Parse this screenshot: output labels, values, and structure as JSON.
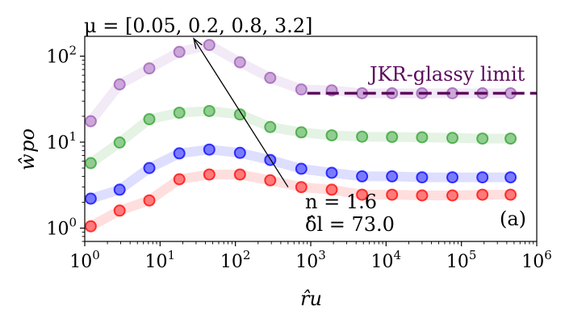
{
  "chart_data": {
    "type": "scatter",
    "x_scale": "log",
    "y_scale": "log",
    "xlim": [
      1,
      1000000
    ],
    "ylim": [
      0.7,
      170
    ],
    "xticks": [
      1,
      10,
      100,
      1000,
      10000,
      100000,
      1000000
    ],
    "yticks": [
      1,
      10,
      100
    ],
    "tick_base": "10",
    "xtick_exponents": [
      "0",
      "1",
      "2",
      "3",
      "4",
      "5",
      "6"
    ],
    "ytick_exponents": [
      "0",
      "1",
      "2"
    ],
    "xlabel": "r̂u",
    "ylabel": "ŵpo",
    "x": [
      1.2,
      2.9,
      7.2,
      18,
      45,
      115,
      290,
      750,
      1900,
      4800,
      12000,
      30000,
      76000,
      190000,
      450000
    ],
    "series": [
      {
        "color": "#9b59b6",
        "values": [
          17.5,
          47,
          72,
          112,
          135,
          85,
          56,
          41,
          40,
          37,
          37,
          37,
          37,
          37,
          37
        ]
      },
      {
        "color": "#2ca02c",
        "values": [
          5.7,
          9.9,
          18.5,
          22,
          23,
          21,
          15,
          13,
          12,
          11.6,
          11.5,
          11.4,
          11.2,
          11.0,
          11.0
        ]
      },
      {
        "color": "#0000ff",
        "values": [
          2.2,
          2.8,
          5.0,
          7.4,
          8.2,
          7.5,
          6.2,
          4.9,
          4.4,
          4.0,
          4.0,
          3.9,
          3.9,
          3.9,
          3.9
        ]
      },
      {
        "color": "#ff0000",
        "values": [
          1.05,
          1.6,
          2.1,
          3.7,
          4.2,
          4.2,
          3.6,
          3.0,
          2.8,
          2.45,
          2.45,
          2.4,
          2.4,
          2.45,
          2.45
        ]
      }
    ],
    "jkr_limit": {
      "label": "JKR-glassy limit",
      "y": 37,
      "x_start": 900,
      "x_end": 1000000,
      "color": "#5c0a5c"
    },
    "arrow": {
      "from": [
        500,
        3.0
      ],
      "to": [
        28,
        160
      ]
    },
    "mu_label": "μ = [0.05, 0.2, 0.8, 3.2]",
    "n_label": "n = 1.6",
    "delta_label": "δ̂l = 73.0",
    "panel_label": "(a)"
  }
}
